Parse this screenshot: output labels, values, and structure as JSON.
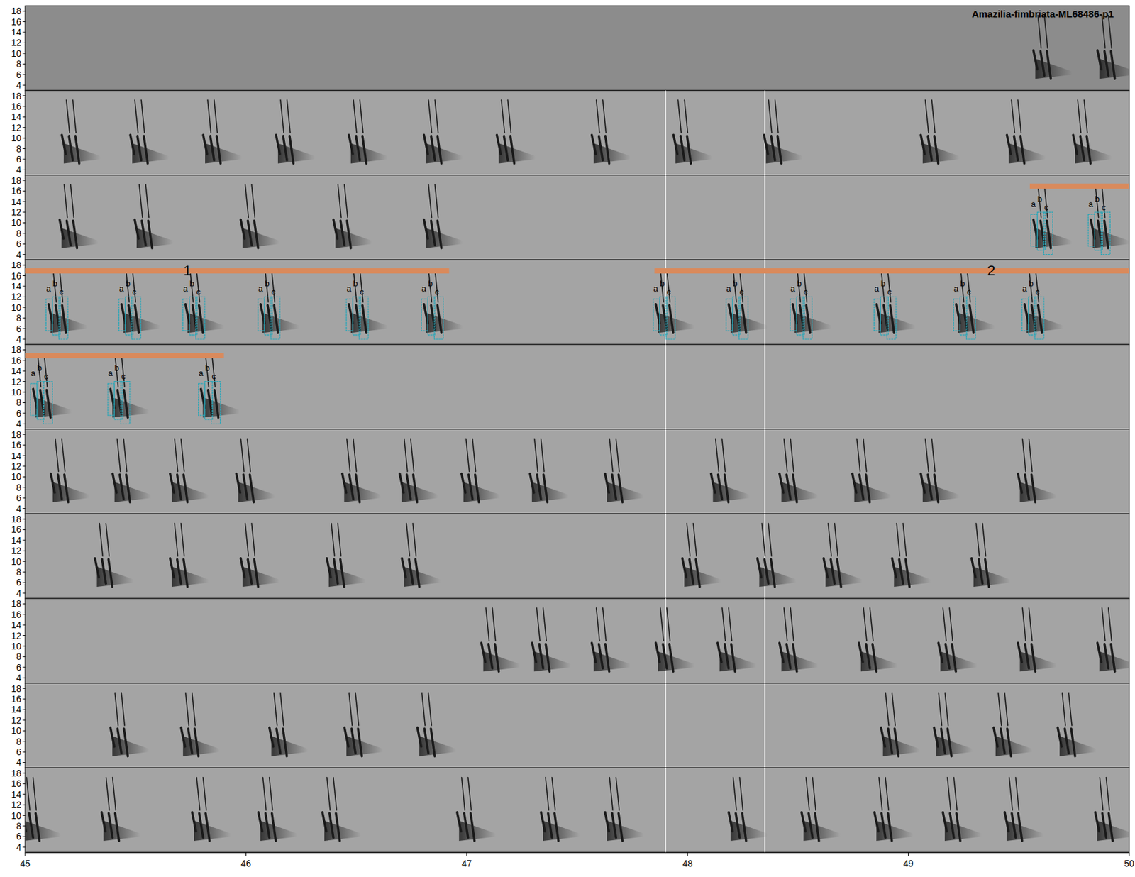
{
  "chart_data": {
    "type": "spectrogram",
    "title": "Amazilia-fimbriata-ML68486-p1",
    "xlim": [
      45,
      50
    ],
    "xticks": [
      45,
      46,
      47,
      48,
      49,
      50
    ],
    "ylim": [
      3,
      19
    ],
    "yticks": [
      4,
      6,
      8,
      10,
      12,
      14,
      16,
      18
    ],
    "syllables": [
      "a",
      "b",
      "c"
    ],
    "vlines": [
      47.9,
      48.35
    ],
    "rows": [
      {
        "calls": [
          49.61,
          49.9
        ]
      },
      {
        "calls": [
          45.21,
          45.52,
          45.85,
          46.18,
          46.51,
          46.85,
          47.18,
          47.61,
          47.98,
          48.39,
          49.1,
          49.49,
          49.79
        ]
      },
      {
        "calls": [
          45.2,
          45.54,
          46.02,
          46.44,
          46.85,
          49.61,
          49.87
        ]
      },
      {
        "calls": [
          45.15,
          45.48,
          45.77,
          46.11,
          46.51,
          46.85,
          47.9,
          48.23,
          48.52,
          48.9,
          49.26,
          49.57
        ]
      },
      {
        "calls": [
          45.08,
          45.43,
          45.84
        ]
      },
      {
        "calls": [
          45.16,
          45.44,
          45.7,
          46.0,
          46.48,
          46.74,
          47.02,
          47.33,
          47.67,
          48.15,
          48.46,
          48.79,
          49.1,
          49.54
        ]
      },
      {
        "calls": [
          45.36,
          45.7,
          46.02,
          46.41,
          46.75,
          48.02,
          48.36,
          48.66,
          48.97,
          49.33
        ]
      },
      {
        "calls": [
          47.11,
          47.34,
          47.61,
          47.9,
          48.18,
          48.46,
          48.82,
          49.18,
          49.54,
          49.9
        ]
      },
      {
        "calls": [
          45.43,
          45.75,
          46.15,
          46.49,
          46.82,
          48.92,
          49.16,
          49.43,
          49.72
        ]
      },
      {
        "calls": [
          45.03,
          45.39,
          45.8,
          46.1,
          46.39,
          47.0,
          47.38,
          47.67,
          48.23,
          48.56,
          48.89,
          49.2,
          49.48,
          49.89
        ]
      }
    ],
    "annotations": [
      {
        "label": "1",
        "segments": [
          {
            "row": 2,
            "start": 49.55,
            "end": 50
          },
          {
            "row": 3,
            "start": 45,
            "end": 46.92
          }
        ]
      },
      {
        "label": "2",
        "segments": [
          {
            "row": 3,
            "start": 47.85,
            "end": 50
          },
          {
            "row": 4,
            "start": 45,
            "end": 45.9
          }
        ]
      }
    ]
  }
}
